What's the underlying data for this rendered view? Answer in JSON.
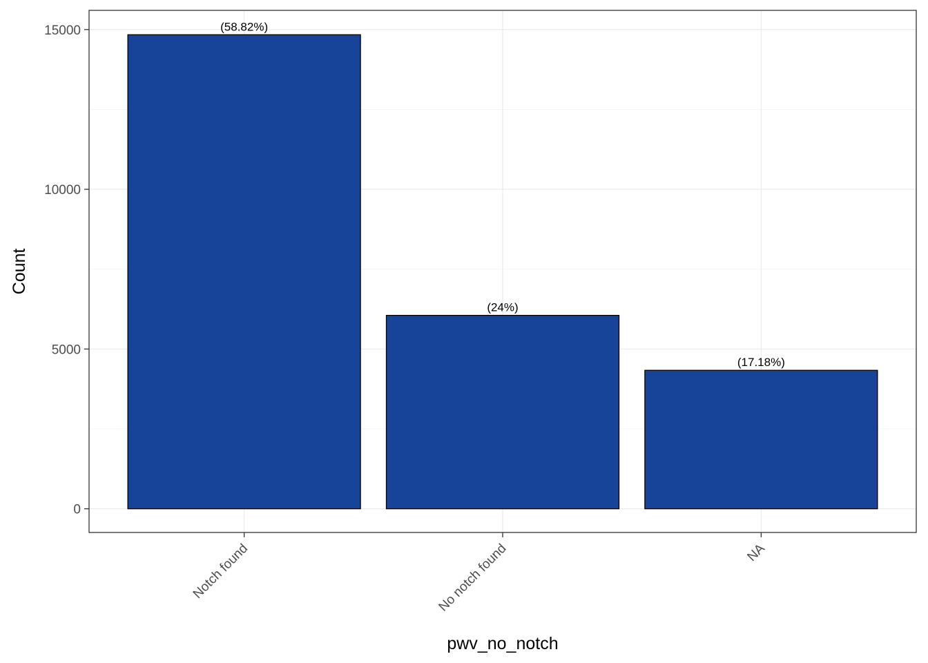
{
  "chart_data": {
    "type": "bar",
    "categories": [
      "Notch found",
      "No notch found",
      "NA"
    ],
    "values": [
      14838,
      6054,
      4334
    ],
    "data_labels": [
      "(58.82%)",
      "(24%)",
      "(17.18%)"
    ],
    "xlabel": "pwv_no_notch",
    "ylabel": "Count",
    "ylim": [
      -742,
      15601
    ],
    "yticks": [
      0,
      5000,
      10000,
      15000
    ],
    "ytick_labels": [
      "0",
      "5000",
      "10000",
      "15000"
    ],
    "grid": true,
    "legend": "none",
    "colors": {
      "bar_fill": "#174499",
      "bar_stroke": "#000000",
      "grid_major": "#ebebeb",
      "grid_minor": "#f5f5f5",
      "panel_border": "#333333",
      "tick_text": "#4d4d4d"
    }
  }
}
